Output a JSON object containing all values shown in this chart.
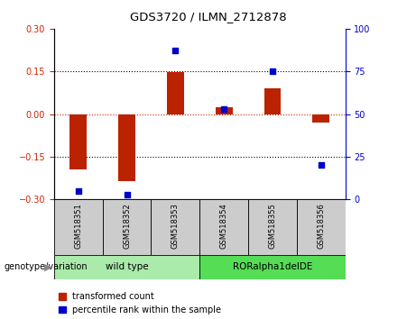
{
  "title": "GDS3720 / ILMN_2712878",
  "categories": [
    "GSM518351",
    "GSM518352",
    "GSM518353",
    "GSM518354",
    "GSM518355",
    "GSM518356"
  ],
  "red_values": [
    -0.195,
    -0.235,
    0.147,
    0.025,
    0.09,
    -0.03
  ],
  "blue_values": [
    5,
    3,
    87,
    53,
    75,
    20
  ],
  "ylim_left": [
    -0.3,
    0.3
  ],
  "ylim_right": [
    0,
    100
  ],
  "yticks_left": [
    -0.3,
    -0.15,
    0,
    0.15,
    0.3
  ],
  "yticks_right": [
    0,
    25,
    50,
    75,
    100
  ],
  "hlines_dotted": [
    -0.15,
    0.15
  ],
  "hline_red": 0,
  "group1_label": "wild type",
  "group2_label": "RORalpha1delDE",
  "group1_indices": [
    0,
    1,
    2
  ],
  "group2_indices": [
    3,
    4,
    5
  ],
  "group1_color": "#aaeaaa",
  "group2_color": "#55dd55",
  "genotype_label": "genotype/variation",
  "bar_color": "#bb2200",
  "dot_color": "#0000cc",
  "bar_width": 0.35,
  "tick_area_color": "#cccccc",
  "legend_red": "transformed count",
  "legend_blue": "percentile rank within the sample",
  "left_color": "#cc2200",
  "right_color": "#0000cc"
}
